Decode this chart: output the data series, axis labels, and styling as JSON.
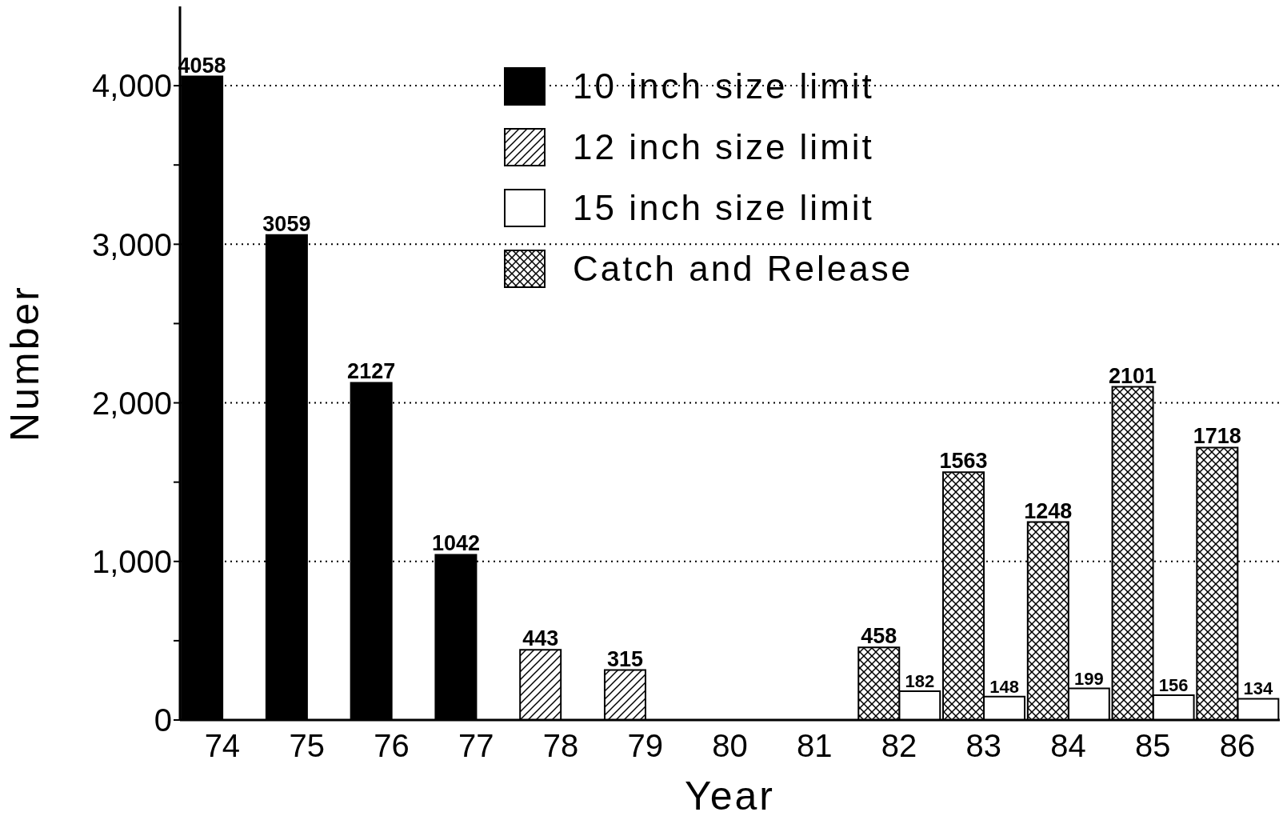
{
  "chart_data": {
    "type": "bar",
    "xlabel": "Year",
    "ylabel": "Number",
    "categories": [
      "74",
      "75",
      "76",
      "77",
      "78",
      "79",
      "80",
      "81",
      "82",
      "83",
      "84",
      "85",
      "86"
    ],
    "series": [
      {
        "name": "10 inch size limit",
        "color": "#000000",
        "values": [
          4058,
          3059,
          2127,
          1042,
          null,
          null,
          null,
          null,
          null,
          null,
          null,
          null,
          null
        ]
      },
      {
        "name": "12 inch size limit",
        "color": "#000000",
        "values": [
          null,
          null,
          null,
          null,
          443,
          315,
          null,
          null,
          null,
          null,
          null,
          null,
          null
        ]
      },
      {
        "name": "15 inch size limit",
        "color": "#ffffff",
        "values": [
          null,
          null,
          null,
          null,
          null,
          null,
          null,
          null,
          182,
          148,
          199,
          156,
          134
        ]
      },
      {
        "name": "Catch and Release",
        "color": "#000000",
        "values": [
          null,
          null,
          null,
          null,
          null,
          null,
          null,
          null,
          458,
          1563,
          1248,
          2101,
          1718
        ]
      }
    ],
    "ylim": [
      0,
      4500
    ],
    "yticks": [
      0,
      {
        "value": 500,
        "label": null
      },
      {
        "value": 1000,
        "label": "1,000"
      },
      {
        "value": 1500,
        "label": null
      },
      {
        "value": 2000,
        "label": "2,000"
      },
      {
        "value": 2500,
        "label": null
      },
      {
        "value": 3000,
        "label": "3,000"
      },
      {
        "value": 3500,
        "label": null
      },
      {
        "value": 4000,
        "label": "4,000"
      }
    ],
    "grid": "y",
    "legend": "top",
    "data_labels": true
  }
}
